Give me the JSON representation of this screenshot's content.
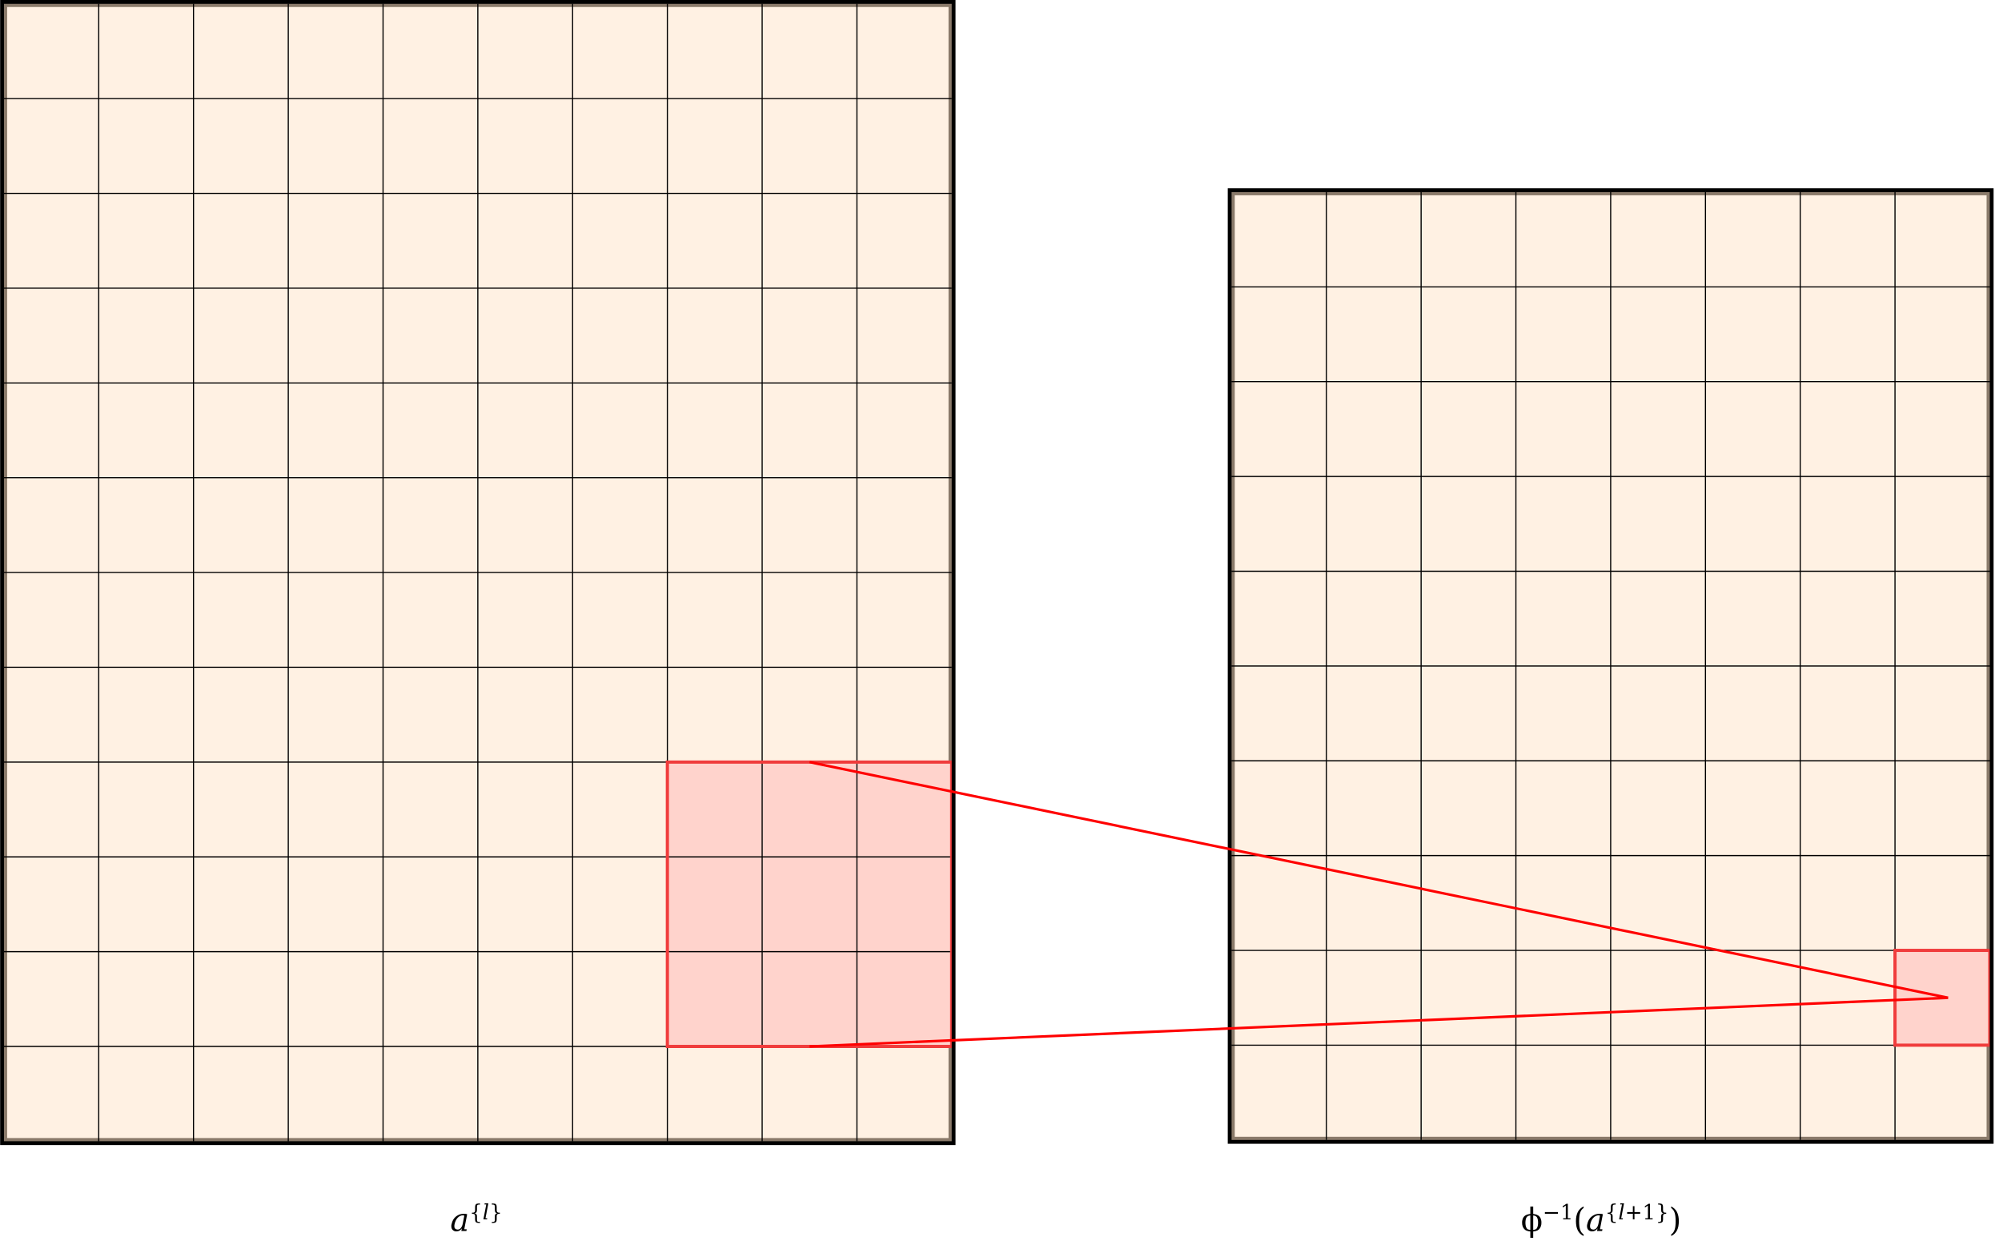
{
  "diagram": {
    "colors": {
      "cell_fill": "#fff1e3",
      "grid_line": "#000000",
      "highlight_fill": "#ffd3cc",
      "highlight_stroke": "#f03c3c",
      "connector": "#ff0000"
    },
    "left_grid": {
      "label": "a^{l}",
      "rows": 12,
      "cols": 10,
      "highlight": {
        "row_start": 8,
        "col_start": 7,
        "size": 3
      }
    },
    "right_grid": {
      "label": "ϕ^{-1}(a^{l+1})",
      "rows": 10,
      "cols": 8,
      "highlight": {
        "row_start": 8,
        "col_start": 7,
        "size": 1
      }
    }
  }
}
